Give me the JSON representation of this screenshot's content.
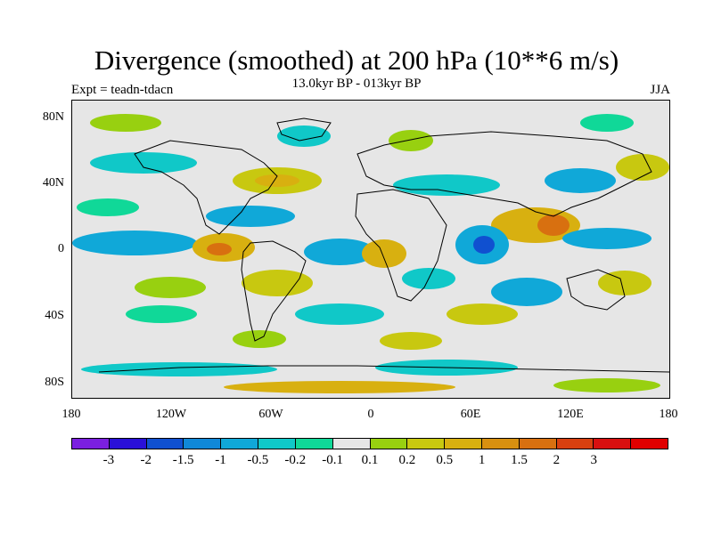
{
  "title": "Divergence (smoothed) at 200 hPa (10**6 m/s)",
  "subtitle": "13.0kyr BP - 013kyr BP",
  "experiment": "Expt = teadn-tdacn",
  "season": "JJA",
  "lat_labels": [
    "80N",
    "40N",
    "0",
    "40S",
    "80S"
  ],
  "lon_labels": [
    "180",
    "120W",
    "60W",
    "0",
    "60E",
    "120E",
    "180"
  ],
  "colorbar": {
    "colors": [
      "#7b1fe0",
      "#2a10d8",
      "#1050d0",
      "#1088d8",
      "#10a8d8",
      "#10c8c8",
      "#10d898",
      "#e6e6e6",
      "#98d010",
      "#c8c810",
      "#d8b010",
      "#d89010",
      "#d87010",
      "#d84010",
      "#d81010",
      "#e00000"
    ],
    "labels": [
      "-3",
      "-2",
      "-1.5",
      "-1",
      "-0.5",
      "-0.2",
      "-0.1",
      "0.1",
      "0.2",
      "0.5",
      "1",
      "1.5",
      "2",
      "3"
    ]
  }
}
